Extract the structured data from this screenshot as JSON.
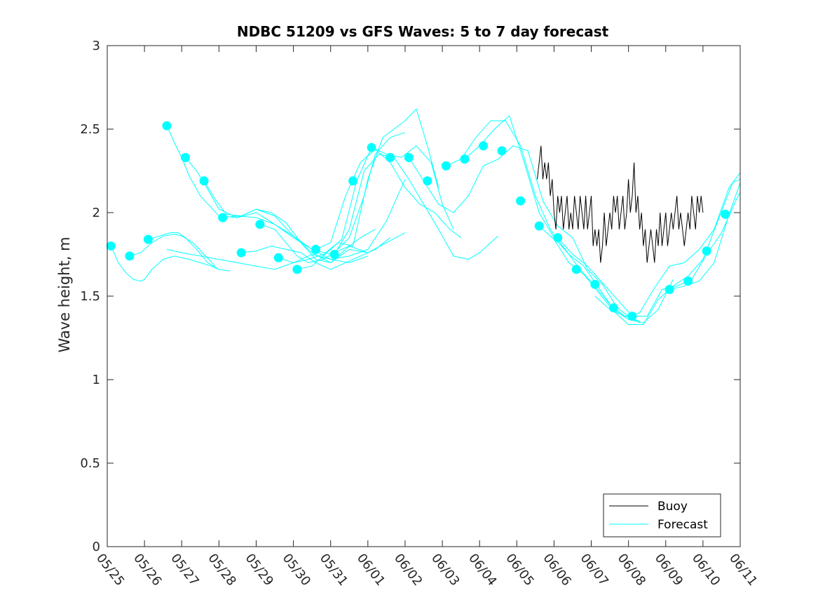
{
  "chart_data": {
    "type": "line",
    "title": "NDBC 51209 vs GFS Waves: 5 to 7 day forecast",
    "xlabel": "",
    "ylabel": "Wave height, m",
    "ylim": [
      0,
      3
    ],
    "yticks": [
      "0",
      "0.5",
      "1",
      "1.5",
      "2",
      "2.5",
      "3"
    ],
    "xlim": [
      0,
      17
    ],
    "xticks": [
      "05/25",
      "05/26",
      "05/27",
      "05/28",
      "05/29",
      "05/30",
      "05/31",
      "06/01",
      "06/02",
      "06/03",
      "06/04",
      "06/05",
      "06/06",
      "06/07",
      "06/08",
      "06/09",
      "06/10",
      "06/11"
    ],
    "grid": false,
    "legend_position": "bottom-right",
    "colors": {
      "buoy": "#000000",
      "forecast": "#00ffff"
    },
    "series": [
      {
        "name": "Buoy",
        "x": [
          11.55,
          11.6,
          11.65,
          11.7,
          11.75,
          11.8,
          11.85,
          11.9,
          11.95,
          12.0,
          12.05,
          12.1,
          12.15,
          12.2,
          12.25,
          12.3,
          12.35,
          12.4,
          12.45,
          12.5,
          12.55,
          12.6,
          12.65,
          12.7,
          12.75,
          12.8,
          12.85,
          12.9,
          12.95,
          13.0,
          13.05,
          13.1,
          13.15,
          13.2,
          13.25,
          13.3,
          13.35,
          13.4,
          13.45,
          13.5,
          13.55,
          13.6,
          13.65,
          13.7,
          13.75,
          13.8,
          13.85,
          13.9,
          13.95,
          14.0,
          14.05,
          14.1,
          14.15,
          14.2,
          14.25,
          14.3,
          14.35,
          14.4,
          14.45,
          14.5,
          14.55,
          14.6,
          14.65,
          14.7,
          14.75,
          14.8,
          14.85,
          14.9,
          14.95,
          15.0,
          15.05,
          15.1,
          15.15,
          15.2,
          15.25,
          15.3,
          15.35,
          15.4,
          15.45,
          15.5,
          15.55,
          15.6,
          15.65,
          15.7,
          15.75,
          15.8,
          15.85,
          15.9,
          15.95,
          16.0
        ],
        "values": [
          2.2,
          2.3,
          2.4,
          2.2,
          2.3,
          2.2,
          2.3,
          2.1,
          2.2,
          2.0,
          1.9,
          2.1,
          2.0,
          2.1,
          1.9,
          2.0,
          2.1,
          1.9,
          2.0,
          1.9,
          2.1,
          2.0,
          1.9,
          2.1,
          2.0,
          1.9,
          2.1,
          1.9,
          2.0,
          2.1,
          1.8,
          1.9,
          1.8,
          1.9,
          1.7,
          1.8,
          2.0,
          1.8,
          1.9,
          2.0,
          1.9,
          2.1,
          2.0,
          2.1,
          1.9,
          2.0,
          2.1,
          1.9,
          2.0,
          2.2,
          2.0,
          2.1,
          2.3,
          2.0,
          2.1,
          1.9,
          2.0,
          1.8,
          1.9,
          1.7,
          1.8,
          1.9,
          1.8,
          1.7,
          1.9,
          1.8,
          2.0,
          1.8,
          1.9,
          2.0,
          1.8,
          1.9,
          2.0,
          1.9,
          2.0,
          2.1,
          1.9,
          2.0,
          1.9,
          1.8,
          1.9,
          2.0,
          1.9,
          2.1,
          2.0,
          1.9,
          2.1,
          2.0,
          2.1,
          2.0
        ]
      },
      {
        "name": "Forecast",
        "lines": [
          {
            "x": [
              0.1,
              0.3,
              0.5,
              0.7,
              0.9,
              1.0,
              1.2,
              1.5,
              1.8,
              2.0,
              2.2,
              2.5,
              2.8,
              3.0
            ],
            "values": [
              1.8,
              1.7,
              1.64,
              1.6,
              1.59,
              1.6,
              1.66,
              1.72,
              1.74,
              1.73,
              1.72,
              1.7,
              1.68,
              1.66
            ]
          },
          {
            "x": [
              0.6,
              0.9,
              1.2,
              1.5,
              1.8,
              2.0,
              2.3,
              2.6,
              2.9
            ],
            "values": [
              1.74,
              1.76,
              1.82,
              1.86,
              1.87,
              1.86,
              1.82,
              1.75,
              1.68
            ]
          },
          {
            "x": [
              1.1,
              1.4,
              1.7,
              1.9,
              2.1,
              2.4,
              2.7,
              3.0,
              3.3
            ],
            "values": [
              1.84,
              1.86,
              1.88,
              1.88,
              1.85,
              1.78,
              1.7,
              1.66,
              1.65
            ]
          },
          {
            "x": [
              1.6,
              2.0,
              2.5,
              3.0,
              3.5,
              4.0,
              4.5,
              5.0,
              5.5,
              6.0,
              6.5,
              7.0
            ],
            "values": [
              1.78,
              1.76,
              1.74,
              1.72,
              1.7,
              1.68,
              1.66,
              1.7,
              1.75,
              1.72,
              1.7,
              1.74
            ]
          },
          {
            "x": [
              1.6,
              1.8,
              2.0,
              2.2,
              2.5,
              3.0,
              3.5,
              4.0,
              4.5,
              5.0,
              5.5,
              6.0,
              6.5,
              7.0
            ],
            "values": [
              2.52,
              2.42,
              2.33,
              2.22,
              2.1,
              1.98,
              1.97,
              2.0,
              1.93,
              1.85,
              1.78,
              1.75,
              1.8,
              1.76
            ]
          },
          {
            "x": [
              2.1,
              2.4,
              2.7,
              3.0,
              3.5,
              4.0,
              4.5,
              5.0,
              5.5,
              6.0,
              6.5,
              7.0,
              7.5,
              8.0
            ],
            "values": [
              2.33,
              2.25,
              2.14,
              2.02,
              1.97,
              2.02,
              1.98,
              1.86,
              1.76,
              1.7,
              1.78,
              1.76,
              1.82,
              1.88
            ]
          },
          {
            "x": [
              2.6,
              2.9,
              3.2,
              3.6,
              4.0,
              4.4,
              4.8,
              5.2,
              5.6,
              6.0,
              6.4,
              6.8,
              7.2
            ],
            "values": [
              2.19,
              2.08,
              1.99,
              1.98,
              2.02,
              2.0,
              1.94,
              1.82,
              1.72,
              1.7,
              1.78,
              1.85,
              1.9
            ]
          },
          {
            "x": [
              3.1,
              3.5,
              4.0,
              4.5,
              5.0,
              5.5,
              6.0,
              6.5,
              7.0,
              7.5,
              8.0
            ],
            "values": [
              1.97,
              1.98,
              1.97,
              1.93,
              1.86,
              1.78,
              1.72,
              1.74,
              1.78,
              1.95,
              2.2
            ]
          },
          {
            "x": [
              3.6,
              4.0,
              4.4,
              4.8,
              5.2,
              5.6,
              6.0,
              6.4,
              6.8,
              7.2,
              7.6
            ],
            "values": [
              1.76,
              1.77,
              1.8,
              1.78,
              1.76,
              1.7,
              1.66,
              1.7,
              1.74,
              1.78,
              1.85
            ]
          },
          {
            "x": [
              4.1,
              4.5,
              4.8,
              5.1,
              5.4,
              5.8,
              6.1,
              6.5,
              6.9,
              7.2,
              7.6,
              8.0
            ],
            "values": [
              1.93,
              1.9,
              1.82,
              1.74,
              1.7,
              1.72,
              1.76,
              1.85,
              2.1,
              2.35,
              2.45,
              2.48
            ]
          },
          {
            "x": [
              4.6,
              5.0,
              5.4,
              5.8,
              6.2,
              6.6,
              7.0,
              7.4,
              7.7,
              8.0,
              8.3,
              8.6,
              8.9
            ],
            "values": [
              1.73,
              1.7,
              1.72,
              1.75,
              1.82,
              1.8,
              2.2,
              2.45,
              2.5,
              2.55,
              2.62,
              2.4,
              2.15
            ]
          },
          {
            "x": [
              5.1,
              5.5,
              5.9,
              6.3,
              6.7,
              7.1,
              7.5,
              7.9,
              8.3,
              8.7,
              9.0,
              9.3
            ],
            "values": [
              1.66,
              1.68,
              1.76,
              1.84,
              2.19,
              2.39,
              2.35,
              2.33,
              2.4,
              2.3,
              2.05,
              1.9
            ]
          },
          {
            "x": [
              5.6,
              6.0,
              6.4,
              6.8,
              7.2,
              7.6,
              8.0,
              8.4,
              8.8,
              9.2,
              9.5
            ],
            "values": [
              1.78,
              1.82,
              2.1,
              2.3,
              2.38,
              2.3,
              2.15,
              2.05,
              2.0,
              1.9,
              1.85
            ]
          },
          {
            "x": [
              6.1,
              6.5,
              6.9,
              7.3,
              7.7,
              8.1,
              8.5,
              8.9,
              9.3,
              9.7,
              10.0,
              10.3,
              10.5
            ],
            "values": [
              1.75,
              1.9,
              2.25,
              2.35,
              2.33,
              2.2,
              2.05,
              1.9,
              1.74,
              1.72,
              1.76,
              1.82,
              1.86
            ]
          },
          {
            "x": [
              8.1,
              8.5,
              8.9,
              9.3,
              9.7,
              10.1,
              10.5,
              10.9,
              11.3,
              11.7,
              12.1,
              12.5,
              12.9,
              13.3,
              13.7,
              14.0,
              14.3
            ],
            "values": [
              2.33,
              2.19,
              2.05,
              2.0,
              2.1,
              2.28,
              2.32,
              2.4,
              2.37,
              2.07,
              1.92,
              1.85,
              1.66,
              1.57,
              1.43,
              1.38,
              1.34
            ]
          },
          {
            "x": [
              9.1,
              9.5,
              9.9,
              10.3,
              10.7,
              11.1,
              11.5,
              11.9,
              12.3,
              12.7,
              13.1,
              13.5,
              13.9,
              14.3
            ],
            "values": [
              2.28,
              2.32,
              2.45,
              2.55,
              2.55,
              2.4,
              2.1,
              1.9,
              1.78,
              1.66,
              1.56,
              1.45,
              1.38,
              1.35
            ]
          },
          {
            "x": [
              9.6,
              10.0,
              10.4,
              10.8,
              11.2,
              11.6,
              12.0,
              12.4,
              12.8,
              13.2,
              13.6,
              14.0,
              14.4,
              14.8,
              15.2
            ],
            "values": [
              2.32,
              2.4,
              2.5,
              2.58,
              2.3,
              2.0,
              1.85,
              1.75,
              1.68,
              1.55,
              1.42,
              1.36,
              1.34,
              1.42,
              1.6
            ]
          },
          {
            "x": [
              11.6,
              12.0,
              12.4,
              12.8,
              13.2,
              13.6,
              14.0,
              14.4,
              14.8,
              15.2,
              15.6,
              16.0,
              16.4,
              16.8,
              17.0
            ],
            "values": [
              1.92,
              1.84,
              1.7,
              1.63,
              1.52,
              1.41,
              1.33,
              1.33,
              1.48,
              1.56,
              1.62,
              1.72,
              1.95,
              2.18,
              2.2
            ]
          },
          {
            "x": [
              12.1,
              12.5,
              12.9,
              13.3,
              13.7,
              14.1,
              14.5,
              14.9,
              15.3,
              15.7,
              16.1,
              16.5,
              16.9,
              17.0
            ],
            "values": [
              1.85,
              1.75,
              1.68,
              1.58,
              1.48,
              1.38,
              1.38,
              1.54,
              1.56,
              1.6,
              1.75,
              1.88,
              2.08,
              2.12
            ]
          },
          {
            "x": [
              13.1,
              13.5,
              13.9,
              14.3,
              14.7,
              15.1,
              15.5,
              15.9,
              16.3,
              16.7,
              17.0
            ],
            "values": [
              1.5,
              1.42,
              1.38,
              1.4,
              1.55,
              1.68,
              1.7,
              1.78,
              1.9,
              2.15,
              2.24
            ]
          },
          {
            "x": [
              15.1,
              15.5,
              15.9,
              16.3,
              16.7,
              17.0
            ],
            "values": [
              1.54,
              1.56,
              1.59,
              1.7,
              1.99,
              2.18
            ]
          }
        ],
        "markers": {
          "x": [
            0.1,
            0.6,
            1.1,
            1.6,
            2.1,
            2.6,
            3.1,
            3.6,
            4.1,
            4.6,
            5.1,
            5.6,
            6.1,
            6.6,
            7.1,
            7.6,
            8.1,
            8.6,
            9.1,
            9.6,
            10.1,
            10.6,
            11.1,
            11.6,
            12.1,
            12.6,
            13.1,
            13.6,
            14.1,
            15.1,
            15.6,
            16.1,
            16.6
          ],
          "values": [
            1.8,
            1.74,
            1.84,
            2.52,
            2.33,
            2.19,
            1.97,
            1.76,
            1.93,
            1.73,
            1.66,
            1.78,
            1.75,
            2.19,
            2.39,
            2.33,
            2.33,
            2.19,
            2.28,
            2.32,
            2.4,
            2.37,
            2.07,
            1.92,
            1.85,
            1.66,
            1.57,
            1.43,
            1.38,
            1.54,
            1.59,
            1.77,
            1.99
          ]
        }
      }
    ],
    "legend": [
      "Buoy",
      "Forecast"
    ]
  }
}
